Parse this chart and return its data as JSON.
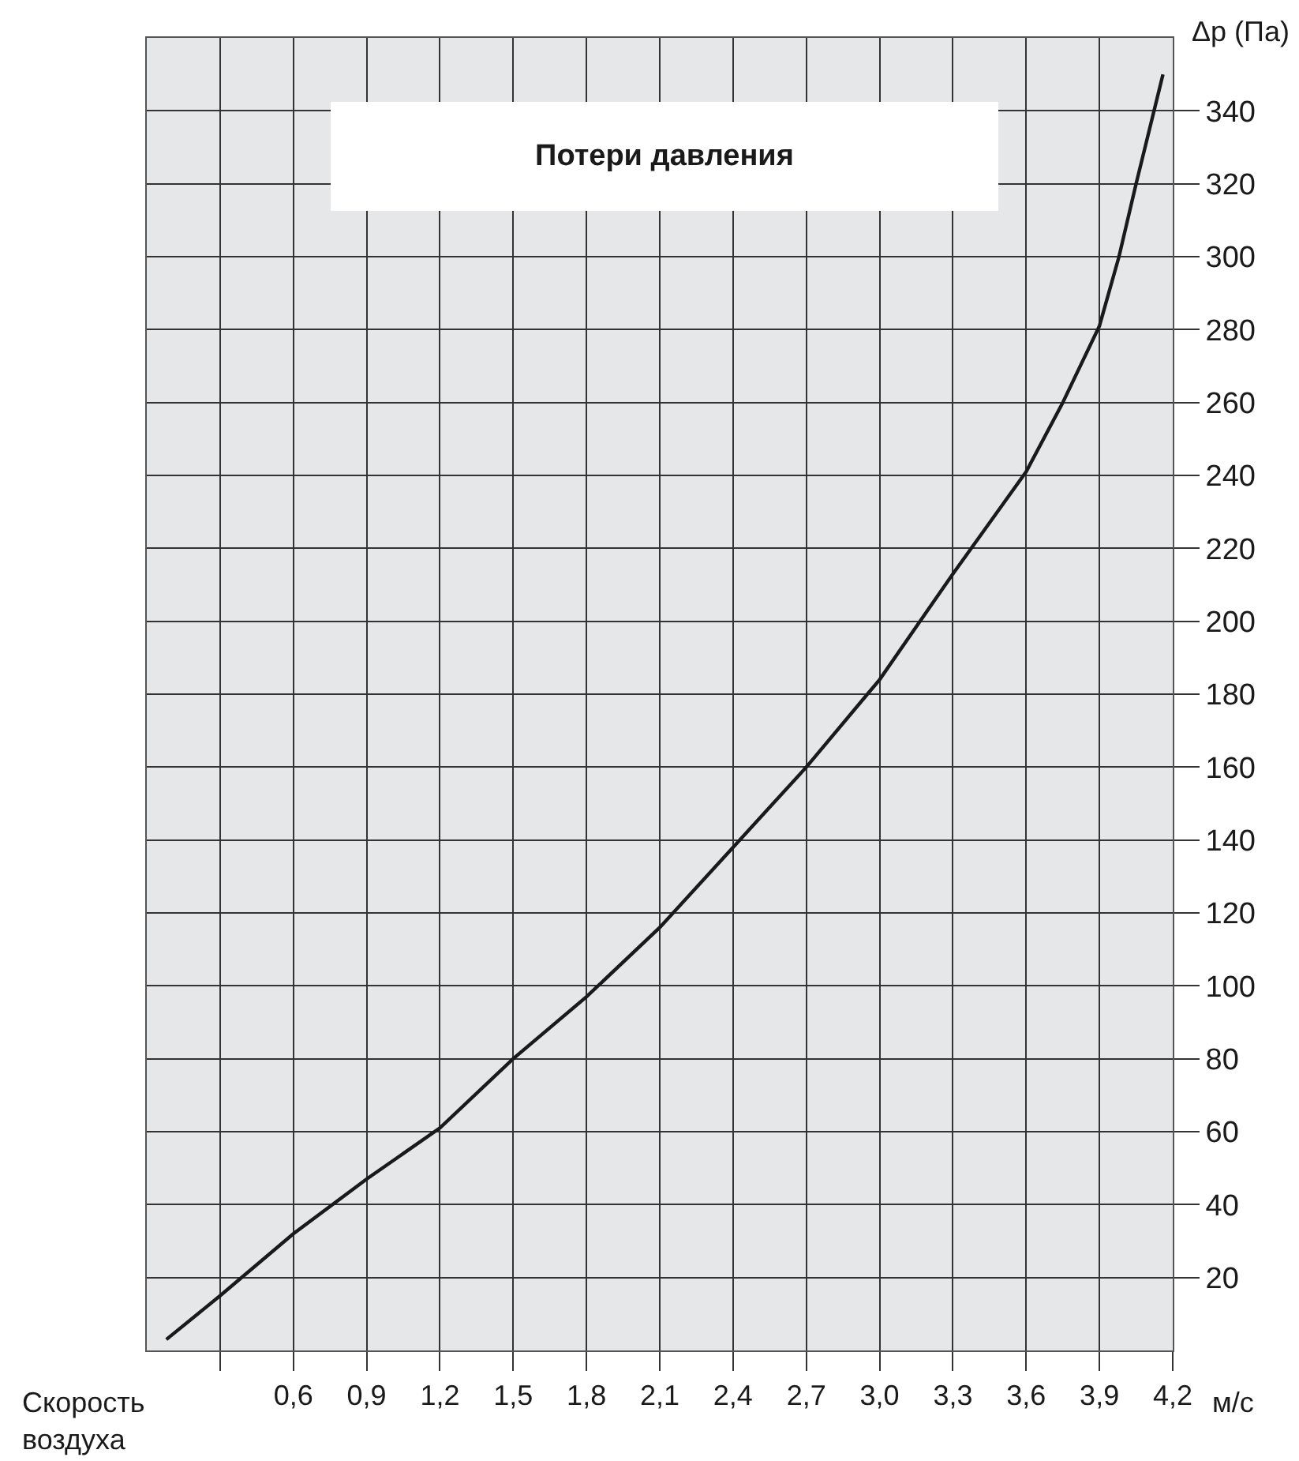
{
  "chart_data": {
    "type": "line",
    "title": "Потери давления",
    "xlabel": "Скорость воздуха",
    "ylabel": "Δp (Па)",
    "annotations": [
      "м/с"
    ],
    "x": [
      0.08,
      0.3,
      0.6,
      0.9,
      1.2,
      1.5,
      1.8,
      2.1,
      2.4,
      2.7,
      2.95,
      3.0,
      3.3,
      3.6,
      3.75,
      3.9,
      3.98,
      4.05,
      4.16
    ],
    "series": [
      {
        "color": "#1a1a1a",
        "values": [
          3,
          15,
          32,
          47,
          61,
          80,
          97,
          116,
          138,
          160,
          180,
          184,
          213,
          241,
          260,
          281,
          300,
          320,
          350
        ]
      }
    ],
    "xlim": [
      0,
      4.2
    ],
    "xticks": [
      {
        "value": 0.3,
        "label": null
      },
      {
        "value": 0.6,
        "label": "0,6"
      },
      {
        "value": 0.9,
        "label": "0,9"
      },
      {
        "value": 1.2,
        "label": "1,2"
      },
      {
        "value": 1.5,
        "label": "1,5"
      },
      {
        "value": 1.8,
        "label": "1,8"
      },
      {
        "value": 2.1,
        "label": "2,1"
      },
      {
        "value": 2.4,
        "label": "2,4"
      },
      {
        "value": 2.7,
        "label": "2,7"
      },
      {
        "value": 3.0,
        "label": "3,0"
      },
      {
        "value": 3.3,
        "label": "3,3"
      },
      {
        "value": 3.6,
        "label": "3,6"
      },
      {
        "value": 3.9,
        "label": "3,9"
      },
      {
        "value": 4.2,
        "label": "4,2"
      }
    ],
    "ylim": [
      0,
      360
    ],
    "yticks": [
      20,
      40,
      60,
      80,
      100,
      120,
      140,
      160,
      180,
      200,
      220,
      240,
      260,
      280,
      300,
      320,
      340
    ],
    "grid": true,
    "legend": false,
    "marker": "none",
    "line_style": "solid"
  }
}
